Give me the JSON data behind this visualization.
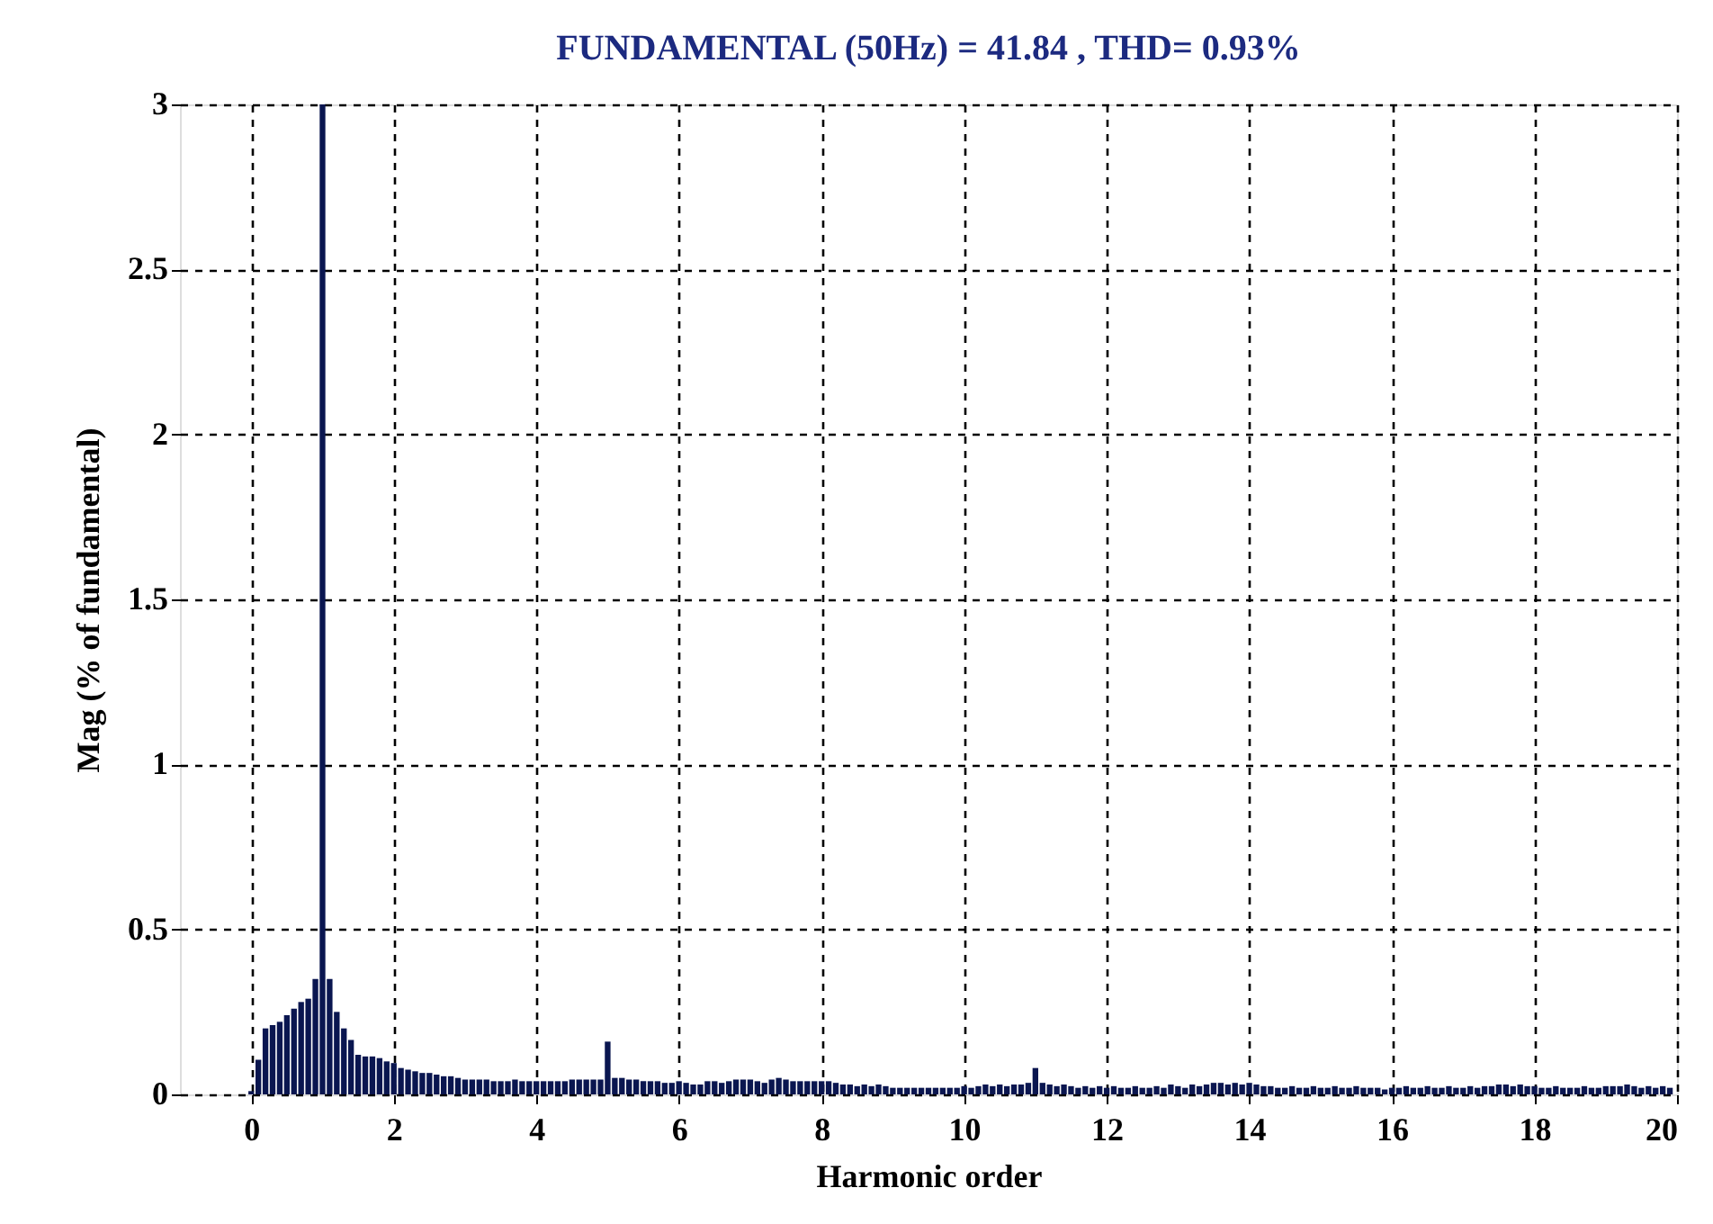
{
  "chart_data": {
    "type": "bar",
    "title": "FUNDAMENTAL (50Hz) = 41.84 , THD= 0.93%",
    "xlabel": "Harmonic order",
    "ylabel": "Mag (% of fundamental)",
    "x": [
      0.0,
      0.1,
      0.2,
      0.3,
      0.4,
      0.5,
      0.6,
      0.7,
      0.8,
      0.9,
      1.0,
      1.1,
      1.2,
      1.3,
      1.4,
      1.5,
      1.6,
      1.7,
      1.8,
      1.9,
      2.0,
      2.1,
      2.2,
      2.3,
      2.4,
      2.5,
      2.6,
      2.7,
      2.8,
      2.9,
      3.0,
      3.1,
      3.2,
      3.3,
      3.4,
      3.5,
      3.6,
      3.7,
      3.8,
      3.9,
      4.0,
      4.1,
      4.2,
      4.3,
      4.4,
      4.5,
      4.6,
      4.7,
      4.8,
      4.9,
      5.0,
      5.1,
      5.2,
      5.3,
      5.4,
      5.5,
      5.6,
      5.7,
      5.8,
      5.9,
      6.0,
      6.1,
      6.2,
      6.3,
      6.4,
      6.5,
      6.6,
      6.7,
      6.8,
      6.9,
      7.0,
      7.1,
      7.2,
      7.3,
      7.4,
      7.5,
      7.6,
      7.7,
      7.8,
      7.9,
      8.0,
      8.1,
      8.2,
      8.3,
      8.4,
      8.5,
      8.6,
      8.7,
      8.8,
      8.9,
      9.0,
      9.1,
      9.2,
      9.3,
      9.4,
      9.5,
      9.6,
      9.7,
      9.8,
      9.9,
      10.0,
      10.1,
      10.2,
      10.3,
      10.4,
      10.5,
      10.6,
      10.7,
      10.8,
      10.9,
      11.0,
      11.1,
      11.2,
      11.3,
      11.4,
      11.5,
      11.6,
      11.7,
      11.8,
      11.9,
      12.0,
      12.1,
      12.2,
      12.3,
      12.4,
      12.5,
      12.6,
      12.7,
      12.8,
      12.9,
      13.0,
      13.1,
      13.2,
      13.3,
      13.4,
      13.5,
      13.6,
      13.7,
      13.8,
      13.9,
      14.0,
      14.1,
      14.2,
      14.3,
      14.4,
      14.5,
      14.6,
      14.7,
      14.8,
      14.9,
      15.0,
      15.1,
      15.2,
      15.3,
      15.4,
      15.5,
      15.6,
      15.7,
      15.8,
      15.9,
      16.0,
      16.1,
      16.2,
      16.3,
      16.4,
      16.5,
      16.6,
      16.7,
      16.8,
      16.9,
      17.0,
      17.1,
      17.2,
      17.3,
      17.4,
      17.5,
      17.6,
      17.7,
      17.8,
      17.9,
      18.0,
      18.1,
      18.2,
      18.3,
      18.4,
      18.5,
      18.6,
      18.7,
      18.8,
      18.9,
      19.0,
      19.1,
      19.2,
      19.3,
      19.4,
      19.5,
      19.6,
      19.7,
      19.8,
      19.9
    ],
    "values": [
      0.01,
      0.105,
      0.2,
      0.21,
      0.22,
      0.24,
      0.26,
      0.28,
      0.29,
      0.35,
      3,
      0.35,
      0.25,
      0.2,
      0.165,
      0.12,
      0.115,
      0.115,
      0.11,
      0.1,
      0.095,
      0.08,
      0.075,
      0.07,
      0.065,
      0.065,
      0.06,
      0.055,
      0.055,
      0.05,
      0.045,
      0.045,
      0.045,
      0.045,
      0.04,
      0.04,
      0.04,
      0.045,
      0.04,
      0.04,
      0.04,
      0.04,
      0.04,
      0.04,
      0.04,
      0.045,
      0.045,
      0.045,
      0.045,
      0.045,
      0.16,
      0.05,
      0.05,
      0.045,
      0.045,
      0.04,
      0.04,
      0.04,
      0.035,
      0.035,
      0.04,
      0.035,
      0.03,
      0.03,
      0.04,
      0.04,
      0.035,
      0.04,
      0.045,
      0.045,
      0.045,
      0.04,
      0.035,
      0.045,
      0.05,
      0.045,
      0.04,
      0.04,
      0.04,
      0.04,
      0.04,
      0.04,
      0.035,
      0.03,
      0.03,
      0.025,
      0.03,
      0.025,
      0.03,
      0.025,
      0.02,
      0.02,
      0.02,
      0.02,
      0.02,
      0.02,
      0.02,
      0.02,
      0.02,
      0.02,
      0.025,
      0.02,
      0.025,
      0.03,
      0.025,
      0.03,
      0.025,
      0.03,
      0.03,
      0.035,
      0.08,
      0.035,
      0.03,
      0.025,
      0.03,
      0.025,
      0.02,
      0.025,
      0.02,
      0.025,
      0.02,
      0.025,
      0.02,
      0.02,
      0.025,
      0.02,
      0.02,
      0.025,
      0.02,
      0.03,
      0.025,
      0.02,
      0.03,
      0.025,
      0.03,
      0.035,
      0.035,
      0.03,
      0.035,
      0.03,
      0.035,
      0.03,
      0.025,
      0.025,
      0.02,
      0.02,
      0.025,
      0.02,
      0.02,
      0.025,
      0.02,
      0.02,
      0.025,
      0.02,
      0.02,
      0.025,
      0.02,
      0.02,
      0.02,
      0.015,
      0.02,
      0.02,
      0.025,
      0.02,
      0.02,
      0.025,
      0.02,
      0.02,
      0.025,
      0.02,
      0.02,
      0.025,
      0.02,
      0.025,
      0.025,
      0.03,
      0.03,
      0.025,
      0.03,
      0.025,
      0.025,
      0.02,
      0.02,
      0.025,
      0.02,
      0.02,
      0.02,
      0.025,
      0.02,
      0.02,
      0.025,
      0.025,
      0.025,
      0.03,
      0.025,
      0.02,
      0.025,
      0.02,
      0.025,
      0.02
    ],
    "color": "#0a1650",
    "xlim": [
      -1,
      20
    ],
    "ylim": [
      0,
      3
    ],
    "xticks": [
      0,
      2,
      4,
      6,
      8,
      10,
      12,
      14,
      16,
      18,
      20
    ],
    "yticks": [
      0,
      0.5,
      1,
      1.5,
      2,
      2.5,
      3
    ],
    "grid": true
  }
}
